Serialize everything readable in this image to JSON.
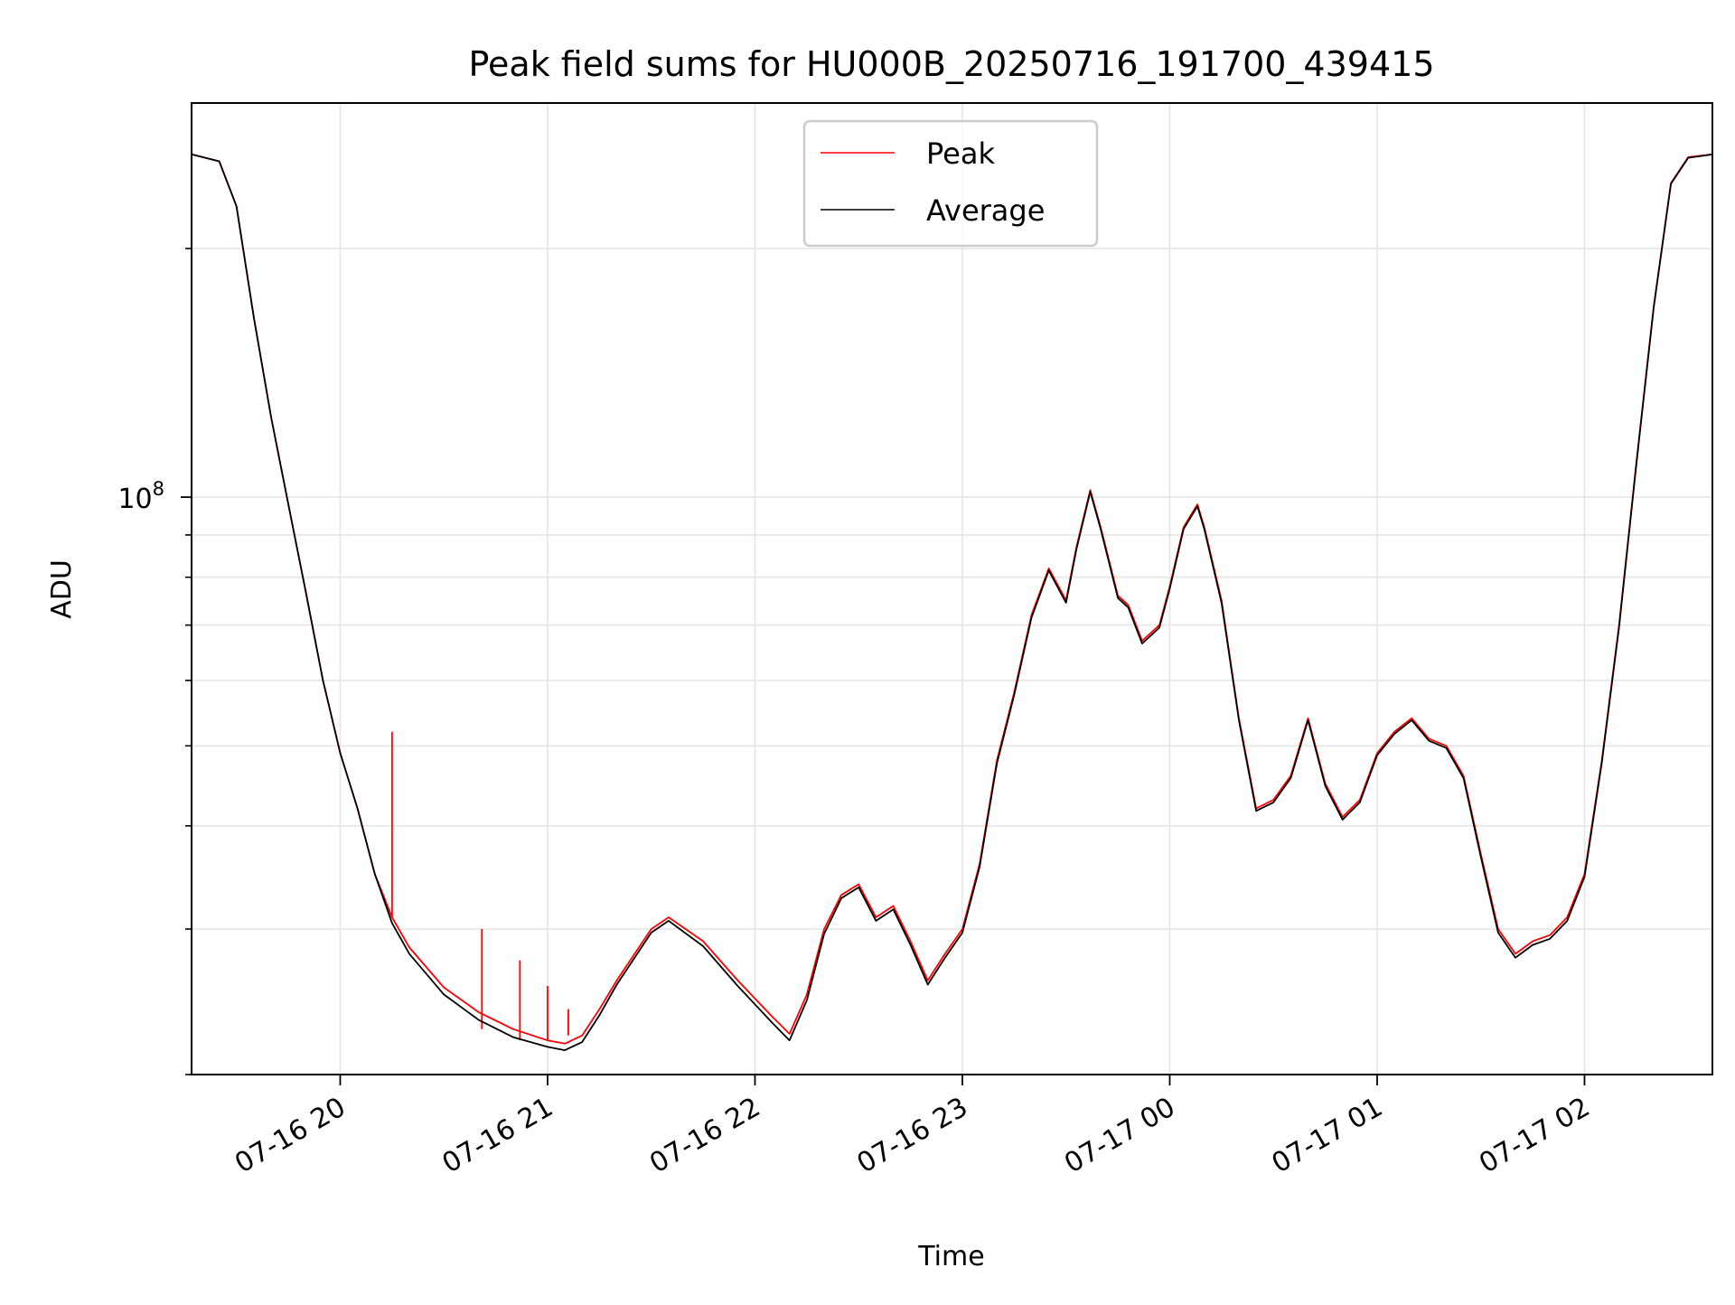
{
  "chart_data": {
    "type": "line",
    "title": "Peak field sums for HU000B_20250716_191700_439415",
    "xlabel": "Time",
    "ylabel": "ADU",
    "y_scale": "log",
    "ylim": [
      20000000,
      300000000
    ],
    "xlim": [
      "2025-07-16 19:17",
      "2025-07-17 02:37"
    ],
    "x_ticks": [
      "2025-07-16 20:00",
      "2025-07-16 21:00",
      "2025-07-16 22:00",
      "2025-07-16 23:00",
      "2025-07-17 00:00",
      "2025-07-17 01:00",
      "2025-07-17 02:00"
    ],
    "x_tick_labels": [
      "07-16 20",
      "07-16 21",
      "07-16 22",
      "07-16 23",
      "07-17 00",
      "07-17 01",
      "07-17 02"
    ],
    "y_major_ticks": [
      100000000
    ],
    "y_major_tick_labels": [
      {
        "base": "10",
        "exp": "8"
      }
    ],
    "y_minor_ticks": [
      20000000,
      30000000,
      40000000,
      50000000,
      60000000,
      70000000,
      80000000,
      90000000,
      200000000
    ],
    "grid": true,
    "legend": {
      "location": "upper center",
      "entries": [
        "Peak",
        "Average"
      ]
    },
    "series": [
      {
        "name": "Peak",
        "color": "#ff0000",
        "x": [
          "2025-07-16 19:17",
          "2025-07-16 19:25",
          "2025-07-16 19:30",
          "2025-07-16 19:35",
          "2025-07-16 19:40",
          "2025-07-16 19:45",
          "2025-07-16 19:50",
          "2025-07-16 19:55",
          "2025-07-16 20:00",
          "2025-07-16 20:05",
          "2025-07-16 20:10",
          "2025-07-16 20:15",
          "2025-07-16 20:20",
          "2025-07-16 20:30",
          "2025-07-16 20:40",
          "2025-07-16 20:50",
          "2025-07-16 21:00",
          "2025-07-16 21:05",
          "2025-07-16 21:10",
          "2025-07-16 21:15",
          "2025-07-16 21:20",
          "2025-07-16 21:30",
          "2025-07-16 21:35",
          "2025-07-16 21:45",
          "2025-07-16 21:55",
          "2025-07-16 22:05",
          "2025-07-16 22:10",
          "2025-07-16 22:15",
          "2025-07-16 22:20",
          "2025-07-16 22:25",
          "2025-07-16 22:30",
          "2025-07-16 22:35",
          "2025-07-16 22:40",
          "2025-07-16 22:45",
          "2025-07-16 22:50",
          "2025-07-16 22:55",
          "2025-07-16 23:00",
          "2025-07-16 23:05",
          "2025-07-16 23:10",
          "2025-07-16 23:15",
          "2025-07-16 23:20",
          "2025-07-16 23:25",
          "2025-07-16 23:30",
          "2025-07-16 23:33",
          "2025-07-16 23:37",
          "2025-07-16 23:40",
          "2025-07-16 23:45",
          "2025-07-16 23:48",
          "2025-07-16 23:52",
          "2025-07-16 23:57",
          "2025-07-17 00:00",
          "2025-07-17 00:04",
          "2025-07-17 00:08",
          "2025-07-17 00:10",
          "2025-07-17 00:15",
          "2025-07-17 00:20",
          "2025-07-17 00:25",
          "2025-07-17 00:30",
          "2025-07-17 00:35",
          "2025-07-17 00:40",
          "2025-07-17 00:45",
          "2025-07-17 00:50",
          "2025-07-17 00:55",
          "2025-07-17 01:00",
          "2025-07-17 01:05",
          "2025-07-17 01:10",
          "2025-07-17 01:15",
          "2025-07-17 01:20",
          "2025-07-17 01:25",
          "2025-07-17 01:30",
          "2025-07-17 01:35",
          "2025-07-17 01:40",
          "2025-07-17 01:45",
          "2025-07-17 01:50",
          "2025-07-17 01:55",
          "2025-07-17 02:00",
          "2025-07-17 02:05",
          "2025-07-17 02:10",
          "2025-07-17 02:15",
          "2025-07-17 02:20",
          "2025-07-17 02:25",
          "2025-07-17 02:30",
          "2025-07-17 02:37"
        ],
        "y": [
          260000000,
          255000000,
          225000000,
          165000000,
          125000000,
          98000000,
          77000000,
          60000000,
          49000000,
          42000000,
          35000000,
          31000000,
          28500000,
          25500000,
          23800000,
          22700000,
          22000000,
          21800000,
          22300000,
          24000000,
          26000000,
          30000000,
          31000000,
          29000000,
          26000000,
          23500000,
          22400000,
          25000000,
          30000000,
          33000000,
          34000000,
          31000000,
          32000000,
          29000000,
          26000000,
          28000000,
          30000000,
          36000000,
          48000000,
          58000000,
          72000000,
          82000000,
          75000000,
          87000000,
          102000000,
          92000000,
          76000000,
          74000000,
          67000000,
          70000000,
          78000000,
          92000000,
          98000000,
          92000000,
          75000000,
          54000000,
          42000000,
          43000000,
          46000000,
          54000000,
          45000000,
          41000000,
          43000000,
          49000000,
          52000000,
          54000000,
          51000000,
          50000000,
          46000000,
          37000000,
          30000000,
          28000000,
          29000000,
          29500000,
          31000000,
          35000000,
          48000000,
          70000000,
          110000000,
          170000000,
          240000000,
          258000000,
          260000000
        ],
        "spikes": [
          {
            "x": "2025-07-16 20:15",
            "y": 52000000
          },
          {
            "x": "2025-07-16 20:41",
            "y": 30000000
          },
          {
            "x": "2025-07-16 20:52",
            "y": 27500000
          },
          {
            "x": "2025-07-16 21:00",
            "y": 25600000
          },
          {
            "x": "2025-07-16 21:06",
            "y": 24000000
          }
        ]
      },
      {
        "name": "Average",
        "color": "#000000",
        "x": [
          "2025-07-16 19:17",
          "2025-07-16 19:25",
          "2025-07-16 19:30",
          "2025-07-16 19:35",
          "2025-07-16 19:40",
          "2025-07-16 19:45",
          "2025-07-16 19:50",
          "2025-07-16 19:55",
          "2025-07-16 20:00",
          "2025-07-16 20:05",
          "2025-07-16 20:10",
          "2025-07-16 20:15",
          "2025-07-16 20:20",
          "2025-07-16 20:30",
          "2025-07-16 20:40",
          "2025-07-16 20:50",
          "2025-07-16 21:00",
          "2025-07-16 21:05",
          "2025-07-16 21:10",
          "2025-07-16 21:15",
          "2025-07-16 21:20",
          "2025-07-16 21:30",
          "2025-07-16 21:35",
          "2025-07-16 21:45",
          "2025-07-16 21:55",
          "2025-07-16 22:05",
          "2025-07-16 22:10",
          "2025-07-16 22:15",
          "2025-07-16 22:20",
          "2025-07-16 22:25",
          "2025-07-16 22:30",
          "2025-07-16 22:35",
          "2025-07-16 22:40",
          "2025-07-16 22:45",
          "2025-07-16 22:50",
          "2025-07-16 22:55",
          "2025-07-16 23:00",
          "2025-07-16 23:05",
          "2025-07-16 23:10",
          "2025-07-16 23:15",
          "2025-07-16 23:20",
          "2025-07-16 23:25",
          "2025-07-16 23:30",
          "2025-07-16 23:33",
          "2025-07-16 23:37",
          "2025-07-16 23:40",
          "2025-07-16 23:45",
          "2025-07-16 23:48",
          "2025-07-16 23:52",
          "2025-07-16 23:57",
          "2025-07-17 00:00",
          "2025-07-17 00:04",
          "2025-07-17 00:08",
          "2025-07-17 00:10",
          "2025-07-17 00:15",
          "2025-07-17 00:20",
          "2025-07-17 00:25",
          "2025-07-17 00:30",
          "2025-07-17 00:35",
          "2025-07-17 00:40",
          "2025-07-17 00:45",
          "2025-07-17 00:50",
          "2025-07-17 00:55",
          "2025-07-17 01:00",
          "2025-07-17 01:05",
          "2025-07-17 01:10",
          "2025-07-17 01:15",
          "2025-07-17 01:20",
          "2025-07-17 01:25",
          "2025-07-17 01:30",
          "2025-07-17 01:35",
          "2025-07-17 01:40",
          "2025-07-17 01:45",
          "2025-07-17 01:50",
          "2025-07-17 01:55",
          "2025-07-17 02:00",
          "2025-07-17 02:05",
          "2025-07-17 02:10",
          "2025-07-17 02:15",
          "2025-07-17 02:20",
          "2025-07-17 02:25",
          "2025-07-17 02:30",
          "2025-07-17 02:37"
        ],
        "y": [
          260000000,
          255000000,
          225000000,
          165000000,
          125000000,
          98000000,
          77000000,
          60000000,
          49000000,
          42000000,
          35000000,
          30500000,
          28000000,
          25000000,
          23300000,
          22200000,
          21600000,
          21400000,
          21900000,
          23600000,
          25700000,
          29700000,
          30700000,
          28600000,
          25600000,
          23100000,
          22000000,
          24600000,
          29600000,
          32700000,
          33700000,
          30700000,
          31700000,
          28700000,
          25700000,
          27700000,
          29700000,
          35700000,
          47600000,
          57600000,
          71500000,
          81500000,
          74500000,
          86500000,
          101500000,
          91500000,
          75500000,
          73500000,
          66500000,
          69500000,
          77500000,
          91500000,
          97500000,
          91500000,
          74500000,
          53700000,
          41700000,
          42700000,
          45700000,
          53700000,
          44700000,
          40700000,
          42700000,
          48700000,
          51700000,
          53700000,
          50700000,
          49700000,
          45700000,
          36700000,
          29700000,
          27700000,
          28700000,
          29200000,
          30700000,
          34700000,
          47700000,
          69600000,
          109500000,
          169500000,
          239500000,
          257500000,
          260000000
        ]
      }
    ]
  }
}
